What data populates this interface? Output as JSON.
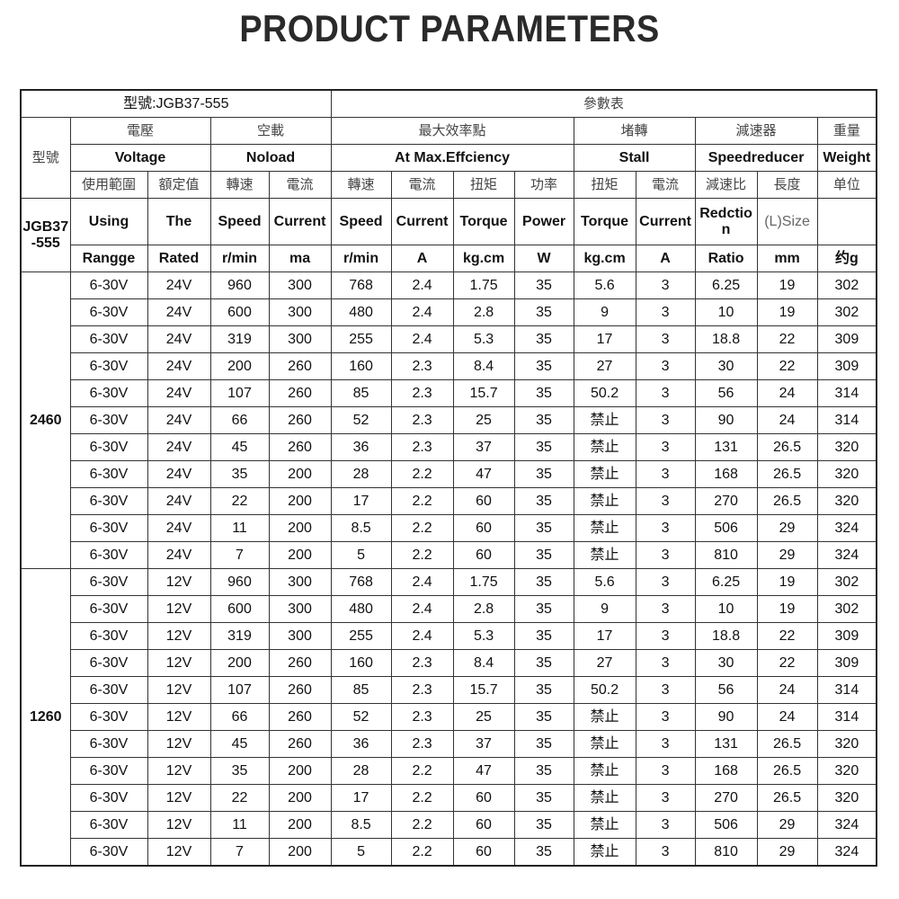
{
  "title": "PRODUCT PARAMETERS",
  "header": {
    "model_title": "型號:JGB37-555",
    "param_table": "參數表",
    "model_cn": "型號",
    "model_en": "JGB37-555",
    "groups_cn": [
      "電壓",
      "空載",
      "最大效率點",
      "堵轉",
      "減速器",
      "重量"
    ],
    "groups_en": [
      "Voltage",
      "Noload",
      "At Max.Effciency",
      "Stall",
      "Speedreducer",
      "Weight"
    ],
    "cols_cn": [
      "使用範圍",
      "額定值",
      "轉速",
      "電流",
      "轉速",
      "電流",
      "扭矩",
      "功率",
      "扭矩",
      "電流",
      "減速比",
      "長度",
      "单位"
    ],
    "cols_en": [
      "Using",
      "The",
      "Speed",
      "Current",
      "Speed",
      "Current",
      "Torque",
      "Power",
      "Torque",
      "Current",
      "Redction",
      "(L)Size",
      ""
    ],
    "units": [
      "Rangge",
      "Rated",
      "r/min",
      "ma",
      "r/min",
      "A",
      "kg.cm",
      "W",
      "kg.cm",
      "A",
      "Ratio",
      "mm",
      "约g"
    ]
  },
  "groups": [
    {
      "model": "2460",
      "rows": [
        [
          "6-30V",
          "24V",
          "960",
          "300",
          "768",
          "2.4",
          "1.75",
          "35",
          "5.6",
          "3",
          "6.25",
          "19",
          "302"
        ],
        [
          "6-30V",
          "24V",
          "600",
          "300",
          "480",
          "2.4",
          "2.8",
          "35",
          "9",
          "3",
          "10",
          "19",
          "302"
        ],
        [
          "6-30V",
          "24V",
          "319",
          "300",
          "255",
          "2.4",
          "5.3",
          "35",
          "17",
          "3",
          "18.8",
          "22",
          "309"
        ],
        [
          "6-30V",
          "24V",
          "200",
          "260",
          "160",
          "2.3",
          "8.4",
          "35",
          "27",
          "3",
          "30",
          "22",
          "309"
        ],
        [
          "6-30V",
          "24V",
          "107",
          "260",
          "85",
          "2.3",
          "15.7",
          "35",
          "50.2",
          "3",
          "56",
          "24",
          "314"
        ],
        [
          "6-30V",
          "24V",
          "66",
          "260",
          "52",
          "2.3",
          "25",
          "35",
          "禁止",
          "3",
          "90",
          "24",
          "314"
        ],
        [
          "6-30V",
          "24V",
          "45",
          "260",
          "36",
          "2.3",
          "37",
          "35",
          "禁止",
          "3",
          "131",
          "26.5",
          "320"
        ],
        [
          "6-30V",
          "24V",
          "35",
          "200",
          "28",
          "2.2",
          "47",
          "35",
          "禁止",
          "3",
          "168",
          "26.5",
          "320"
        ],
        [
          "6-30V",
          "24V",
          "22",
          "200",
          "17",
          "2.2",
          "60",
          "35",
          "禁止",
          "3",
          "270",
          "26.5",
          "320"
        ],
        [
          "6-30V",
          "24V",
          "11",
          "200",
          "8.5",
          "2.2",
          "60",
          "35",
          "禁止",
          "3",
          "506",
          "29",
          "324"
        ],
        [
          "6-30V",
          "24V",
          "7",
          "200",
          "5",
          "2.2",
          "60",
          "35",
          "禁止",
          "3",
          "810",
          "29",
          "324"
        ]
      ]
    },
    {
      "model": "1260",
      "rows": [
        [
          "6-30V",
          "12V",
          "960",
          "300",
          "768",
          "2.4",
          "1.75",
          "35",
          "5.6",
          "3",
          "6.25",
          "19",
          "302"
        ],
        [
          "6-30V",
          "12V",
          "600",
          "300",
          "480",
          "2.4",
          "2.8",
          "35",
          "9",
          "3",
          "10",
          "19",
          "302"
        ],
        [
          "6-30V",
          "12V",
          "319",
          "300",
          "255",
          "2.4",
          "5.3",
          "35",
          "17",
          "3",
          "18.8",
          "22",
          "309"
        ],
        [
          "6-30V",
          "12V",
          "200",
          "260",
          "160",
          "2.3",
          "8.4",
          "35",
          "27",
          "3",
          "30",
          "22",
          "309"
        ],
        [
          "6-30V",
          "12V",
          "107",
          "260",
          "85",
          "2.3",
          "15.7",
          "35",
          "50.2",
          "3",
          "56",
          "24",
          "314"
        ],
        [
          "6-30V",
          "12V",
          "66",
          "260",
          "52",
          "2.3",
          "25",
          "35",
          "禁止",
          "3",
          "90",
          "24",
          "314"
        ],
        [
          "6-30V",
          "12V",
          "45",
          "260",
          "36",
          "2.3",
          "37",
          "35",
          "禁止",
          "3",
          "131",
          "26.5",
          "320"
        ],
        [
          "6-30V",
          "12V",
          "35",
          "200",
          "28",
          "2.2",
          "47",
          "35",
          "禁止",
          "3",
          "168",
          "26.5",
          "320"
        ],
        [
          "6-30V",
          "12V",
          "22",
          "200",
          "17",
          "2.2",
          "60",
          "35",
          "禁止",
          "3",
          "270",
          "26.5",
          "320"
        ],
        [
          "6-30V",
          "12V",
          "11",
          "200",
          "8.5",
          "2.2",
          "60",
          "35",
          "禁止",
          "3",
          "506",
          "29",
          "324"
        ],
        [
          "6-30V",
          "12V",
          "7",
          "200",
          "5",
          "2.2",
          "60",
          "35",
          "禁止",
          "3",
          "810",
          "29",
          "324"
        ]
      ]
    }
  ]
}
